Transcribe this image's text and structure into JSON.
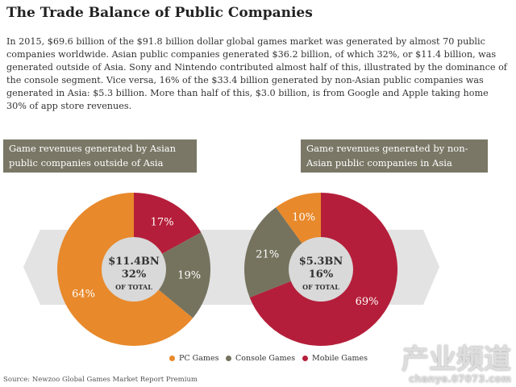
{
  "title": "The Trade Balance of Public Companies",
  "intro": "In 2015, $69.6 billion of the $91.8 billion dollar global games market was generated by almost 70 public companies worldwide. Asian public companies generated $36.2 billion, of which 32%, or $11.4 billion, was generated outside of Asia. Sony and Nintendo contributed almost half of this, illustrated by the dominance of the console segment. Vice versa, 16% of the $33.4 billion generated by non-Asian public companies was generated in Asia: $5.3 billion. More than half of this, $3.0 billion, is from Google and Apple taking home 30% of app store revenues.",
  "colors": {
    "pc": "#e8892b",
    "console": "#75735e",
    "mobile": "#b51e3a",
    "header": "#7a7766",
    "band": "#e3e3e3",
    "hole": "#d9d9d9"
  },
  "chart_data": [
    {
      "type": "pie",
      "title": "Game revenues generated by Asian public companies outside of Asia",
      "center": {
        "value": "$11.4BN",
        "pct": "32%",
        "sub": "OF TOTAL"
      },
      "slices": [
        {
          "name": "Mobile Games",
          "value": 17,
          "label": "17%"
        },
        {
          "name": "Console Games",
          "value": 19,
          "label": "19%"
        },
        {
          "name": "PC Games",
          "value": 64,
          "label": "64%"
        }
      ]
    },
    {
      "type": "pie",
      "title": "Game revenues generated by non-Asian public companies in Asia",
      "center": {
        "value": "$5.3BN",
        "pct": "16%",
        "sub": "OF TOTAL"
      },
      "slices": [
        {
          "name": "Mobile Games",
          "value": 69,
          "label": "69%"
        },
        {
          "name": "Console Games",
          "value": 21,
          "label": "21%"
        },
        {
          "name": "PC Games",
          "value": 10,
          "label": "10%"
        }
      ]
    }
  ],
  "legend": [
    "PC Games",
    "Console Games",
    "Mobile Games"
  ],
  "source": "Source: Newzoo Global Games Market Report Premium",
  "watermark": {
    "text": "产业频道",
    "site": "chanye.07073.com"
  }
}
